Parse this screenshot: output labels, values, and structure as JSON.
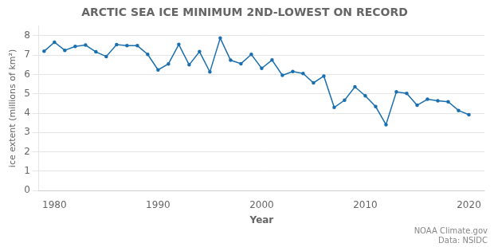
{
  "chart_data": {
    "type": "line",
    "title": "ARCTIC SEA ICE MINIMUM 2ND-LOWEST ON RECORD",
    "x_label": "Year",
    "y_label": "ice extent (millions of km²)",
    "annotations": [
      "NOAA Climate.gov",
      "Data: NSIDC"
    ],
    "x": [
      1979,
      1980,
      1981,
      1982,
      1983,
      1984,
      1985,
      1986,
      1987,
      1988,
      1989,
      1990,
      1991,
      1992,
      1993,
      1994,
      1995,
      1996,
      1997,
      1998,
      1999,
      2000,
      2001,
      2002,
      2003,
      2004,
      2005,
      2006,
      2007,
      2008,
      2009,
      2010,
      2011,
      2012,
      2013,
      2014,
      2015,
      2016,
      2017,
      2018,
      2019,
      2020
    ],
    "values": [
      7.2,
      7.67,
      7.25,
      7.45,
      7.52,
      7.17,
      6.93,
      7.54,
      7.49,
      7.49,
      7.04,
      6.24,
      6.55,
      7.55,
      6.5,
      7.18,
      6.13,
      7.88,
      6.74,
      6.56,
      7.04,
      6.32,
      6.75,
      5.96,
      6.15,
      6.05,
      5.57,
      5.92,
      4.3,
      4.67,
      5.36,
      4.9,
      4.34,
      3.41,
      5.1,
      5.02,
      4.41,
      4.72,
      4.64,
      4.59,
      4.14,
      3.92
    ],
    "color": "#1a6faf",
    "xlim": [
      1978.5,
      2021.5
    ],
    "xticks": [
      1980,
      1990,
      2000,
      2010,
      2020
    ],
    "ylim": [
      0,
      8.5
    ],
    "yticks": [
      0,
      1,
      2,
      3,
      4,
      5,
      6,
      7,
      8
    ],
    "grid": true
  }
}
